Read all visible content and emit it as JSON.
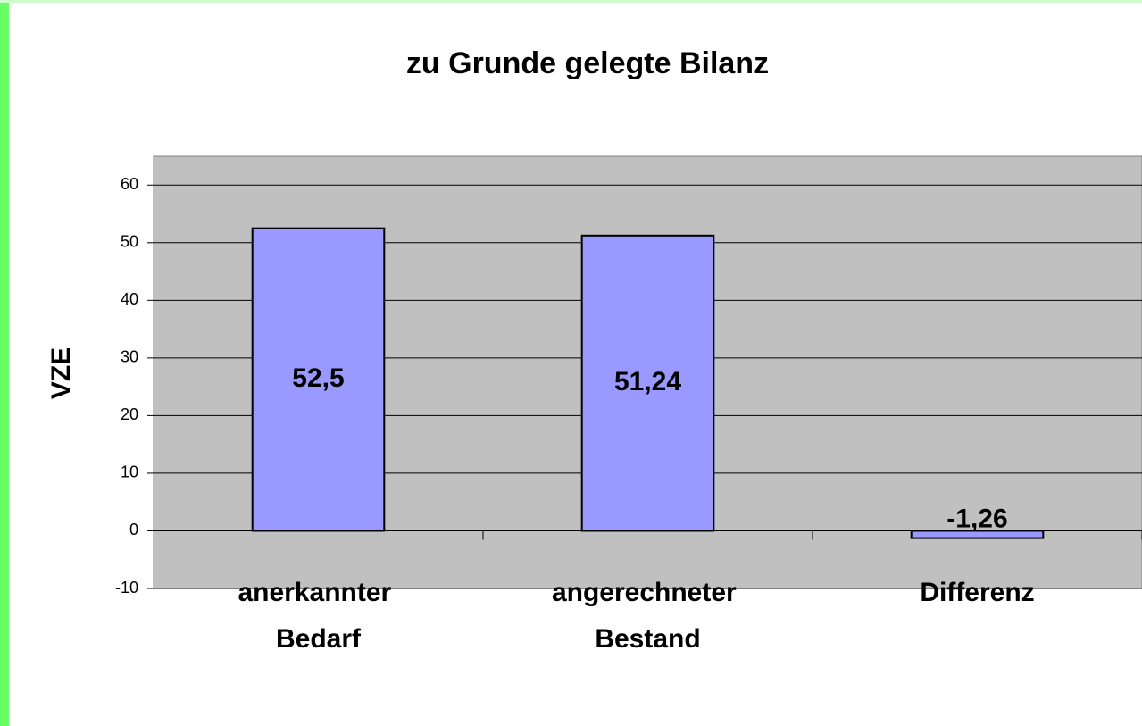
{
  "chart_data": {
    "type": "bar",
    "title": "zu Grunde gelegte Bilanz",
    "y_label": "VZE",
    "categories": [
      "anerkannter Bedarf",
      "angerechneter Bestand",
      "Differenz"
    ],
    "values": [
      52.5,
      51.24,
      -1.26
    ],
    "value_labels": [
      "52,5",
      "51,24",
      "-1,26"
    ],
    "color": "#9999ff",
    "ylim": [
      -10,
      65
    ],
    "yticks": [
      -10,
      0,
      10,
      20,
      30,
      40,
      50,
      60
    ],
    "grid": true
  }
}
